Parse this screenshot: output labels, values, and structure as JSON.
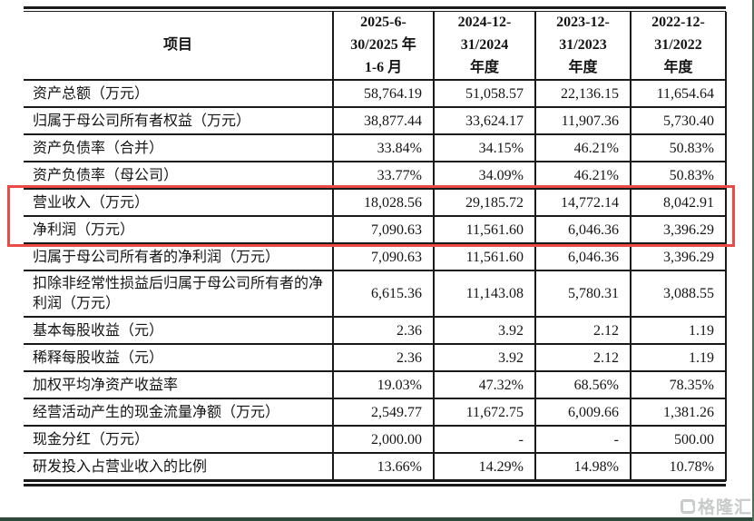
{
  "table": {
    "header": {
      "item_label": "项目",
      "periods": [
        {
          "line1": "2025-6-",
          "line2": "30/2025 年",
          "line3": "1-6 月"
        },
        {
          "line1": "2024-12-",
          "line2": "31/2024",
          "line3": "年度"
        },
        {
          "line1": "2023-12-",
          "line2": "31/2023",
          "line3": "年度"
        },
        {
          "line1": "2022-12-",
          "line2": "31/2022",
          "line3": "年度"
        }
      ]
    },
    "rows": [
      {
        "label": "资产总额（万元）",
        "values": [
          "58,764.19",
          "51,058.57",
          "22,136.15",
          "11,654.64"
        ],
        "highlight": false,
        "two_line": false
      },
      {
        "label": "归属于母公司所有者权益（万元）",
        "values": [
          "38,877.44",
          "33,624.17",
          "11,907.36",
          "5,730.40"
        ],
        "highlight": false,
        "two_line": false
      },
      {
        "label": "资产负债率（合并）",
        "values": [
          "33.84%",
          "34.15%",
          "46.21%",
          "50.83%"
        ],
        "highlight": false,
        "two_line": false
      },
      {
        "label": "资产负债率（母公司）",
        "values": [
          "33.77%",
          "34.09%",
          "46.21%",
          "50.83%"
        ],
        "highlight": false,
        "two_line": false
      },
      {
        "label": "营业收入（万元）",
        "values": [
          "18,028.56",
          "29,185.72",
          "14,772.14",
          "8,042.91"
        ],
        "highlight": true,
        "two_line": false
      },
      {
        "label": "净利润（万元）",
        "values": [
          "7,090.63",
          "11,561.60",
          "6,046.36",
          "3,396.29"
        ],
        "highlight": true,
        "two_line": false
      },
      {
        "label": "归属于母公司所有者的净利润（万元）",
        "values": [
          "7,090.63",
          "11,561.60",
          "6,046.36",
          "3,396.29"
        ],
        "highlight": false,
        "two_line": false
      },
      {
        "label": "扣除非经常性损益后归属于母公司所有者的净利润（万元）",
        "values": [
          "6,615.36",
          "11,143.08",
          "5,780.31",
          "3,088.55"
        ],
        "highlight": false,
        "two_line": true
      },
      {
        "label": "基本每股收益（元）",
        "values": [
          "2.36",
          "3.92",
          "2.12",
          "1.19"
        ],
        "highlight": false,
        "two_line": false
      },
      {
        "label": "稀释每股收益（元）",
        "values": [
          "2.36",
          "3.92",
          "2.12",
          "1.19"
        ],
        "highlight": false,
        "two_line": false
      },
      {
        "label": "加权平均净资产收益率",
        "values": [
          "19.03%",
          "47.32%",
          "68.56%",
          "78.35%"
        ],
        "highlight": false,
        "two_line": false
      },
      {
        "label": "经营活动产生的现金流量净额（万元）",
        "values": [
          "2,549.77",
          "11,672.75",
          "6,009.66",
          "1,381.26"
        ],
        "highlight": false,
        "two_line": false
      },
      {
        "label": "现金分红（万元）",
        "values": [
          "2,000.00",
          "-",
          "-",
          "500.00"
        ],
        "highlight": false,
        "two_line": false
      },
      {
        "label": "研发投入占营业收入的比例",
        "values": [
          "13.66%",
          "14.29%",
          "14.98%",
          "10.78%"
        ],
        "highlight": false,
        "two_line": false
      }
    ]
  },
  "watermark": {
    "text": "格隆汇",
    "logo": "gelonghui-logo"
  },
  "colors": {
    "highlight_border": "#e94b47",
    "table_border": "#1a1a1a",
    "bottom_bar": "#2f4a3c",
    "right_edge_line": "#4d6e55",
    "watermark": "#c2c6c4"
  }
}
